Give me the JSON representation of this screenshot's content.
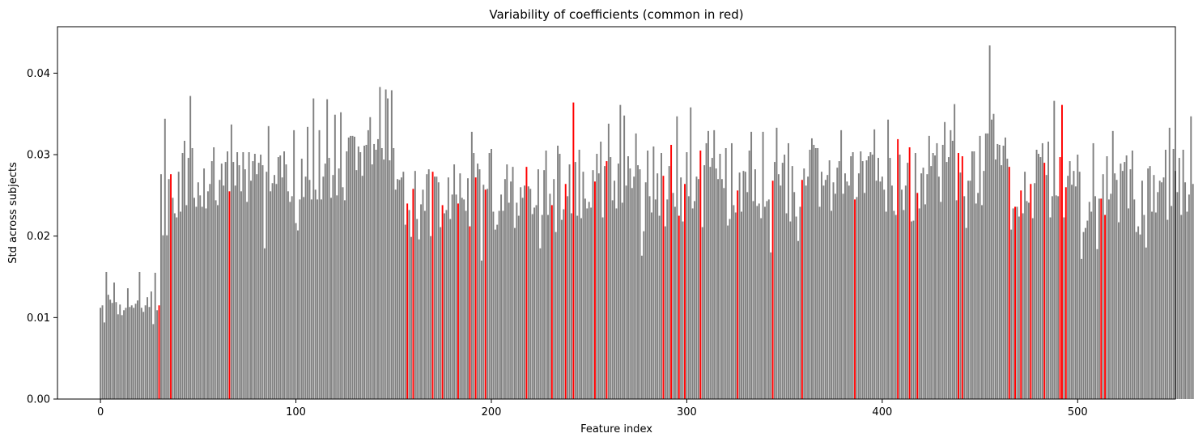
{
  "chart_data": {
    "type": "bar",
    "title": "Variability of coefficients (common in red)",
    "xlabel": "Feature index",
    "ylabel": "Std across subjects",
    "xlim": [
      -22,
      550
    ],
    "ylim": [
      0,
      0.0457
    ],
    "xticks": [
      0,
      100,
      200,
      300,
      400,
      500
    ],
    "yticks": [
      0.0,
      0.01,
      0.02,
      0.03,
      0.04
    ],
    "xtick_labels": [
      "0",
      "100",
      "200",
      "300",
      "400",
      "500"
    ],
    "ytick_labels": [
      "0.00",
      "0.01",
      "0.02",
      "0.03",
      "0.04"
    ],
    "grid": false,
    "colors": {
      "default": "#808080",
      "common": "#ff0000"
    },
    "x_start": 0,
    "common_indices": [
      30,
      36,
      66,
      157,
      160,
      170,
      175,
      183,
      189,
      192,
      197,
      218,
      231,
      238,
      242,
      253,
      259,
      288,
      292,
      296,
      299,
      307,
      326,
      344,
      359,
      386,
      408,
      414,
      418,
      439,
      441,
      465,
      468,
      471,
      476,
      483,
      491,
      492,
      494,
      512,
      514
    ],
    "values": [
      0.0112,
      0.0115,
      0.0094,
      0.0156,
      0.0128,
      0.0122,
      0.0118,
      0.0143,
      0.0119,
      0.0104,
      0.0116,
      0.0103,
      0.0109,
      0.0112,
      0.0136,
      0.0113,
      0.0115,
      0.0112,
      0.0117,
      0.0121,
      0.0156,
      0.0112,
      0.0107,
      0.0115,
      0.0125,
      0.0113,
      0.0132,
      0.0092,
      0.0155,
      0.0109,
      0.0115,
      0.0276,
      0.0201,
      0.0344,
      0.0201,
      0.027,
      0.0276,
      0.0247,
      0.0228,
      0.0223,
      0.0279,
      0.023,
      0.0302,
      0.0317,
      0.0238,
      0.0296,
      0.0372,
      0.0308,
      0.0247,
      0.0236,
      0.0266,
      0.025,
      0.0236,
      0.0283,
      0.0234,
      0.0255,
      0.0264,
      0.0292,
      0.0309,
      0.0244,
      0.0238,
      0.0269,
      0.0289,
      0.0262,
      0.0291,
      0.0304,
      0.0255,
      0.0337,
      0.0291,
      0.0262,
      0.0303,
      0.0287,
      0.0255,
      0.0303,
      0.0282,
      0.0242,
      0.0303,
      0.0268,
      0.0292,
      0.0301,
      0.0276,
      0.029,
      0.03,
      0.0287,
      0.0185,
      0.0279,
      0.0335,
      0.0255,
      0.0265,
      0.0275,
      0.0264,
      0.0297,
      0.0299,
      0.0272,
      0.0304,
      0.0288,
      0.0255,
      0.0242,
      0.0249,
      0.033,
      0.0216,
      0.0207,
      0.0245,
      0.0295,
      0.0248,
      0.0273,
      0.0334,
      0.0269,
      0.0245,
      0.0369,
      0.0257,
      0.0245,
      0.033,
      0.0245,
      0.0273,
      0.0289,
      0.0368,
      0.0296,
      0.0247,
      0.0275,
      0.0349,
      0.025,
      0.0283,
      0.0352,
      0.026,
      0.0244,
      0.0304,
      0.0321,
      0.0323,
      0.0323,
      0.0322,
      0.0281,
      0.031,
      0.0303,
      0.0274,
      0.0311,
      0.0312,
      0.033,
      0.0346,
      0.0288,
      0.0313,
      0.0306,
      0.0319,
      0.0383,
      0.0308,
      0.0294,
      0.038,
      0.0369,
      0.0293,
      0.0379,
      0.0308,
      0.0257,
      0.027,
      0.0269,
      0.0272,
      0.0279,
      0.0214,
      0.024,
      0.0232,
      0.0199,
      0.0258,
      0.028,
      0.0221,
      0.0196,
      0.0239,
      0.0257,
      0.0231,
      0.0276,
      0.0282,
      0.02,
      0.0279,
      0.0273,
      0.0273,
      0.0266,
      0.0211,
      0.0238,
      0.0228,
      0.0232,
      0.0272,
      0.0221,
      0.0251,
      0.0288,
      0.0251,
      0.024,
      0.0277,
      0.0247,
      0.0245,
      0.0231,
      0.0271,
      0.0212,
      0.0328,
      0.0302,
      0.0272,
      0.0289,
      0.0282,
      0.017,
      0.0263,
      0.0257,
      0.0258,
      0.0302,
      0.0307,
      0.023,
      0.0208,
      0.0214,
      0.0231,
      0.0251,
      0.0231,
      0.027,
      0.0288,
      0.0241,
      0.0267,
      0.0285,
      0.021,
      0.0241,
      0.0225,
      0.026,
      0.0247,
      0.0262,
      0.0285,
      0.0261,
      0.0258,
      0.0227,
      0.0235,
      0.0238,
      0.0282,
      0.0185,
      0.0226,
      0.0281,
      0.0305,
      0.0226,
      0.0252,
      0.0238,
      0.027,
      0.0205,
      0.0311,
      0.0301,
      0.022,
      0.0233,
      0.0264,
      0.0249,
      0.0288,
      0.0228,
      0.0364,
      0.0291,
      0.0225,
      0.0306,
      0.0222,
      0.0279,
      0.0246,
      0.0234,
      0.0242,
      0.0235,
      0.0281,
      0.0267,
      0.0301,
      0.0277,
      0.0316,
      0.0223,
      0.0286,
      0.0292,
      0.0338,
      0.0297,
      0.0244,
      0.0268,
      0.0234,
      0.0289,
      0.0361,
      0.0241,
      0.0348,
      0.0262,
      0.0298,
      0.0283,
      0.0259,
      0.0273,
      0.0326,
      0.0287,
      0.0282,
      0.0176,
      0.0206,
      0.0266,
      0.0305,
      0.0249,
      0.0229,
      0.031,
      0.0245,
      0.0277,
      0.0225,
      0.0302,
      0.0274,
      0.0212,
      0.0245,
      0.0286,
      0.0312,
      0.0253,
      0.0236,
      0.0347,
      0.0225,
      0.0272,
      0.0218,
      0.0264,
      0.0303,
      0.0249,
      0.0358,
      0.0234,
      0.0243,
      0.0273,
      0.027,
      0.0305,
      0.0211,
      0.0287,
      0.0314,
      0.0329,
      0.0285,
      0.0296,
      0.033,
      0.0283,
      0.027,
      0.0301,
      0.027,
      0.0259,
      0.0308,
      0.0213,
      0.0221,
      0.0314,
      0.0238,
      0.0229,
      0.0256,
      0.0278,
      0.023,
      0.028,
      0.0279,
      0.0254,
      0.0305,
      0.0328,
      0.0243,
      0.0282,
      0.0237,
      0.024,
      0.0222,
      0.0328,
      0.0236,
      0.0243,
      0.0245,
      0.018,
      0.0268,
      0.0291,
      0.0333,
      0.0276,
      0.0262,
      0.029,
      0.03,
      0.0228,
      0.0314,
      0.0218,
      0.0286,
      0.0254,
      0.0224,
      0.0194,
      0.0236,
      0.0269,
      0.0283,
      0.0262,
      0.0273,
      0.0306,
      0.032,
      0.0312,
      0.0308,
      0.0308,
      0.0236,
      0.0279,
      0.0262,
      0.0269,
      0.0275,
      0.0293,
      0.0231,
      0.0266,
      0.0252,
      0.0284,
      0.0292,
      0.033,
      0.0252,
      0.0277,
      0.0267,
      0.0262,
      0.0298,
      0.0303,
      0.0245,
      0.0248,
      0.0277,
      0.0304,
      0.0292,
      0.0253,
      0.0293,
      0.0298,
      0.0303,
      0.03,
      0.0331,
      0.0268,
      0.0296,
      0.0267,
      0.0273,
      0.0257,
      0.023,
      0.0343,
      0.0296,
      0.0262,
      0.0231,
      0.0226,
      0.0319,
      0.03,
      0.0257,
      0.0232,
      0.0262,
      0.029,
      0.0309,
      0.0218,
      0.0219,
      0.0302,
      0.0253,
      0.0234,
      0.0277,
      0.0284,
      0.0239,
      0.0276,
      0.0323,
      0.0286,
      0.0302,
      0.0299,
      0.0314,
      0.0273,
      0.0242,
      0.0312,
      0.034,
      0.0291,
      0.0297,
      0.033,
      0.0317,
      0.0362,
      0.0244,
      0.0302,
      0.0278,
      0.0298,
      0.0249,
      0.021,
      0.0268,
      0.0268,
      0.0304,
      0.0304,
      0.024,
      0.0253,
      0.0323,
      0.0238,
      0.028,
      0.0326,
      0.0326,
      0.0434,
      0.0343,
      0.035,
      0.0294,
      0.0313,
      0.0312,
      0.0287,
      0.0311,
      0.0321,
      0.0295,
      0.0285,
      0.0208,
      0.0234,
      0.0236,
      0.0236,
      0.0224,
      0.0256,
      0.0228,
      0.0279,
      0.0243,
      0.0241,
      0.0264,
      0.0222,
      0.0265,
      0.0306,
      0.0301,
      0.0297,
      0.0314,
      0.029,
      0.0275,
      0.0316,
      0.0223,
      0.0249,
      0.0366,
      0.025,
      0.0249,
      0.0297,
      0.0361,
      0.0223,
      0.026,
      0.0274,
      0.0292,
      0.0263,
      0.028,
      0.0261,
      0.03,
      0.0279,
      0.0172,
      0.0205,
      0.021,
      0.0219,
      0.0242,
      0.023,
      0.0314,
      0.0249,
      0.0184,
      0.0246,
      0.0246,
      0.0276,
      0.0226,
      0.0298,
      0.0245,
      0.0252,
      0.0329,
      0.0277,
      0.0269,
      0.0217,
      0.0289,
      0.028,
      0.0291,
      0.0299,
      0.0234,
      0.0282,
      0.0305,
      0.0245,
      0.0205,
      0.0212,
      0.0202,
      0.0268,
      0.0226,
      0.0186,
      0.0283,
      0.0286,
      0.023,
      0.0275,
      0.0229,
      0.0254,
      0.0268,
      0.0266,
      0.0272,
      0.0306,
      0.022,
      0.0333,
      0.0237,
      0.0307,
      0.028,
      0.0254,
      0.0296,
      0.0226,
      0.0306,
      0.0266,
      0.023,
      0.0251,
      0.0347,
      0.0264
    ]
  }
}
